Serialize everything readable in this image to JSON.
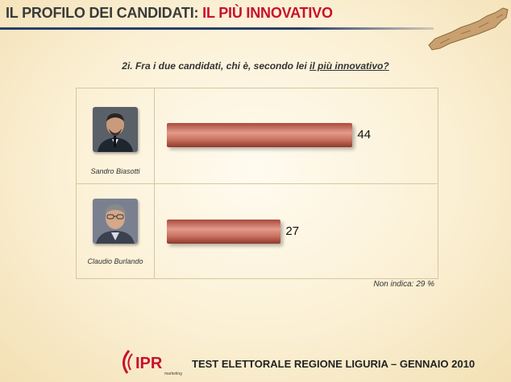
{
  "header": {
    "title_part1": "IL PROFILO DEI CANDIDATI: ",
    "title_part2": "IL PIÙ INNOVATIVO"
  },
  "question": {
    "prefix": "2i. Fra i due candidati, chi è, secondo lei ",
    "emphasis": "il più innovativo?"
  },
  "chart_data": {
    "type": "bar",
    "orientation": "horizontal",
    "categories": [
      "Sandro Biasotti",
      "Claudio Burlando"
    ],
    "values": [
      44,
      27
    ],
    "title": "",
    "xlabel": "",
    "ylabel": "",
    "xlim": [
      0,
      55
    ],
    "grid": false,
    "legend": "none",
    "bar_color": "#c8705f"
  },
  "note": "Non indica: 29 %",
  "footer": {
    "logo_text": "IPR",
    "logo_sub": "marketing",
    "text": "TEST ELETTORALE REGIONE LIGURIA – GENNAIO 2010"
  },
  "colors": {
    "title_accent": "#c8102e",
    "rule": "#2a3d6b",
    "frame": "#d8c5a0"
  }
}
